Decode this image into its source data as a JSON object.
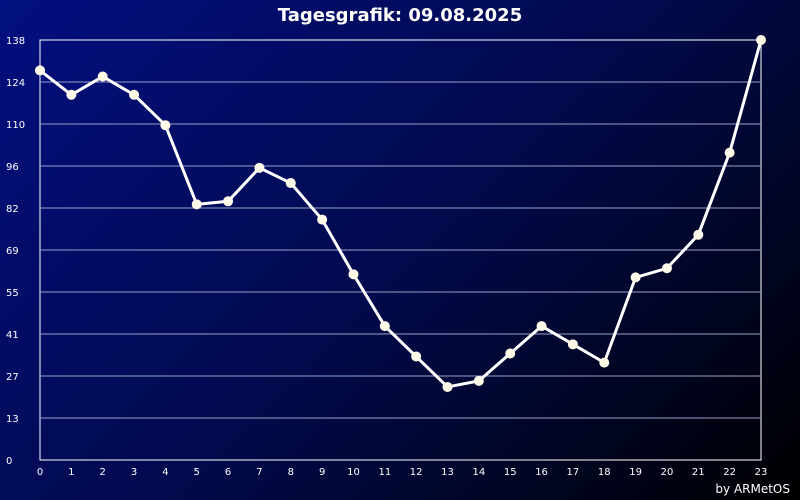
{
  "chart_data": {
    "type": "line",
    "title": "Tagesgrafik: 09.08.2025",
    "credit": "by ARMetOS",
    "x": [
      0,
      1,
      2,
      3,
      4,
      5,
      6,
      7,
      8,
      9,
      10,
      11,
      12,
      13,
      14,
      15,
      16,
      17,
      18,
      19,
      20,
      21,
      22,
      23
    ],
    "y_ticks": [
      "0",
      "13",
      "27",
      "41",
      "55",
      "69",
      "82",
      "96",
      "110",
      "124",
      "138"
    ],
    "ylim": [
      0,
      138
    ],
    "grid": true,
    "series": [
      {
        "values": [
          128,
          120,
          126,
          120,
          110,
          84,
          85,
          96,
          91,
          79,
          61,
          44,
          34,
          24,
          26,
          35,
          44,
          38,
          32,
          60,
          63,
          74,
          101,
          138
        ]
      }
    ],
    "colors": {
      "line": "#ffffff",
      "marker": "#fffbe8",
      "grid": "#9aa0c8"
    }
  }
}
